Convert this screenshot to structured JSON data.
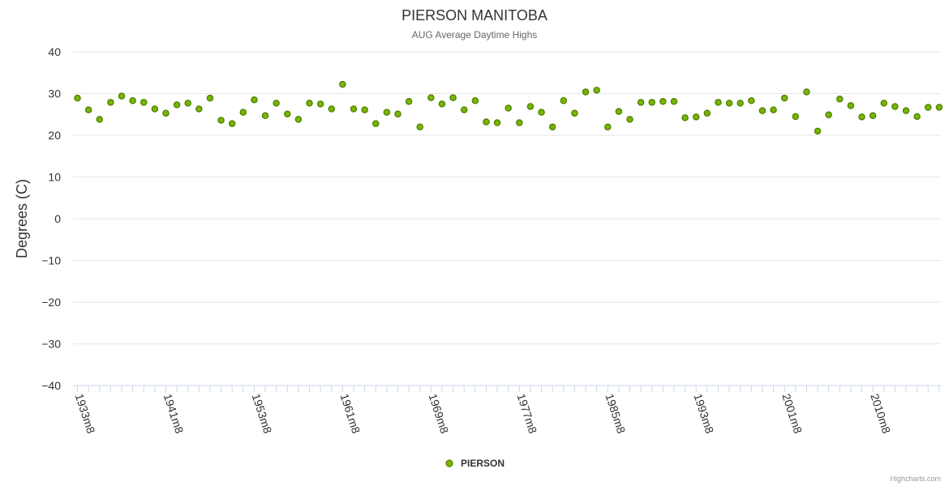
{
  "chart_data": {
    "type": "scatter",
    "title": "PIERSON MANITOBA",
    "subtitle": "AUG Average Daytime Highs",
    "ylabel": "Degrees (C)",
    "xlabel": "",
    "ylim": [
      -40,
      40
    ],
    "yticks": [
      40,
      30,
      20,
      10,
      0,
      -10,
      -20,
      -30,
      -40
    ],
    "xtick_labels": [
      {
        "index": 0,
        "label": "1933m8"
      },
      {
        "index": 8,
        "label": "1941m8"
      },
      {
        "index": 16,
        "label": "1953m8"
      },
      {
        "index": 24,
        "label": "1961m8"
      },
      {
        "index": 32,
        "label": "1969m8"
      },
      {
        "index": 40,
        "label": "1977m8"
      },
      {
        "index": 48,
        "label": "1985m8"
      },
      {
        "index": 56,
        "label": "1993m8"
      },
      {
        "index": 64,
        "label": "2001m8"
      },
      {
        "index": 72,
        "label": "2010m8"
      }
    ],
    "grid": true,
    "legend": "bottom-center",
    "series": [
      {
        "name": "PIERSON",
        "color": "#7cb500",
        "border": "#4a8000",
        "values": [
          28.9,
          26.1,
          23.8,
          27.9,
          29.4,
          28.3,
          27.9,
          26.3,
          25.3,
          27.3,
          27.7,
          26.3,
          28.9,
          23.6,
          22.8,
          25.5,
          28.5,
          24.7,
          27.7,
          25.1,
          23.8,
          27.7,
          27.5,
          26.3,
          32.2,
          26.3,
          26.1,
          22.8,
          25.5,
          25.1,
          28.1,
          22.0,
          29.0,
          27.5,
          29.0,
          26.1,
          28.3,
          23.2,
          23.0,
          26.5,
          23.0,
          26.9,
          25.5,
          22.0,
          28.3,
          25.3,
          30.4,
          30.8,
          22.0,
          25.7,
          23.8,
          27.9,
          27.9,
          28.1,
          28.1,
          24.2,
          24.4,
          25.3,
          27.9,
          27.7,
          27.7,
          28.3,
          25.9,
          26.1,
          28.9,
          24.5,
          30.4,
          21.0,
          24.9,
          28.7,
          27.1,
          24.4,
          24.7,
          27.7,
          26.9,
          25.9,
          24.5,
          26.7,
          26.7
        ]
      }
    ]
  },
  "legend": {
    "label": "PIERSON"
  },
  "credits": "Highcharts.com"
}
